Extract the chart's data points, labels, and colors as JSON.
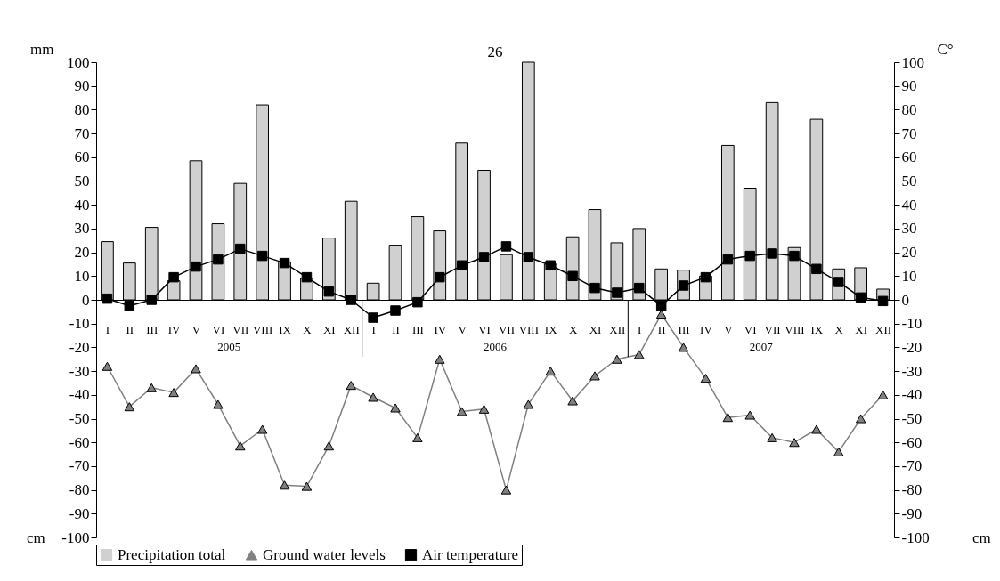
{
  "chart_data": {
    "type": "bar",
    "ylabel": "mm",
    "y2label": "C°",
    "categories": [
      "I",
      "II",
      "III",
      "IV",
      "V",
      "VI",
      "VII",
      "VIII",
      "IX",
      "X",
      "XI",
      "XII",
      "I",
      "II",
      "III",
      "IV",
      "V",
      "VI",
      "VII",
      "VIII",
      "IX",
      "X",
      "XI",
      "XII",
      "I",
      "II",
      "III",
      "IV",
      "V",
      "VI",
      "VII",
      "VIII",
      "IX",
      "X",
      "XI",
      "XII"
    ],
    "series": [
      {
        "name": "Precipitation total",
        "color": "#d0d0d0",
        "values": [
          24.5,
          15.5,
          30.5,
          8,
          58.5,
          32,
          49,
          82,
          16,
          9,
          26,
          41.5,
          7,
          23,
          35,
          29,
          66,
          54.5,
          19,
          100,
          15,
          26.5,
          38,
          24,
          30,
          13,
          12.5,
          10,
          65,
          47,
          83,
          22,
          76,
          13,
          13.5,
          4.5
        ]
      },
      {
        "name": "Ground water levels",
        "type": "line",
        "color": "#808080",
        "marker": "triangle",
        "values": [
          -28,
          -45,
          -37,
          -39,
          -29,
          -44,
          -61.5,
          -54.5,
          -78,
          -78.5,
          -61.5,
          -36,
          -41,
          -45.5,
          -58,
          -25,
          -47,
          -46,
          -80,
          -44,
          -30,
          -42.5,
          -32,
          -25,
          -23,
          -6,
          -20,
          -33,
          -49.5,
          -48.5,
          -58,
          -60,
          -54.5,
          -64,
          -50,
          -40
        ]
      },
      {
        "name": "Air temperature",
        "type": "line",
        "color": "#000000",
        "marker": "square",
        "axis": "y2",
        "values": [
          0.5,
          -2.5,
          0,
          9.5,
          14,
          17,
          21.5,
          18.5,
          15.5,
          9.5,
          3.5,
          0,
          -7.5,
          -4.5,
          -1,
          9.5,
          14.5,
          18,
          22.5,
          18,
          14.5,
          10,
          5,
          3,
          5,
          -2.5,
          6,
          9.5,
          17,
          18.5,
          19.5,
          18.5,
          13,
          7.5,
          1,
          -0.5
        ]
      }
    ],
    "ylim": [
      -100,
      100
    ],
    "yticks": [
      -100,
      -90,
      -80,
      -70,
      -60,
      -50,
      -40,
      -30,
      -20,
      -10,
      0,
      10,
      20,
      30,
      40,
      50,
      60,
      70,
      80,
      90,
      100
    ],
    "y2lim": [
      -100,
      100
    ],
    "y2ticks": [
      -100,
      -90,
      -80,
      -70,
      -60,
      -50,
      -40,
      -30,
      -20,
      -10,
      0,
      10,
      20,
      30,
      40,
      50,
      60,
      70,
      80,
      90,
      100
    ],
    "annotations": [
      "26",
      "2005",
      "2006",
      "2007",
      "cm",
      "cm"
    ],
    "legend": "bottom"
  }
}
